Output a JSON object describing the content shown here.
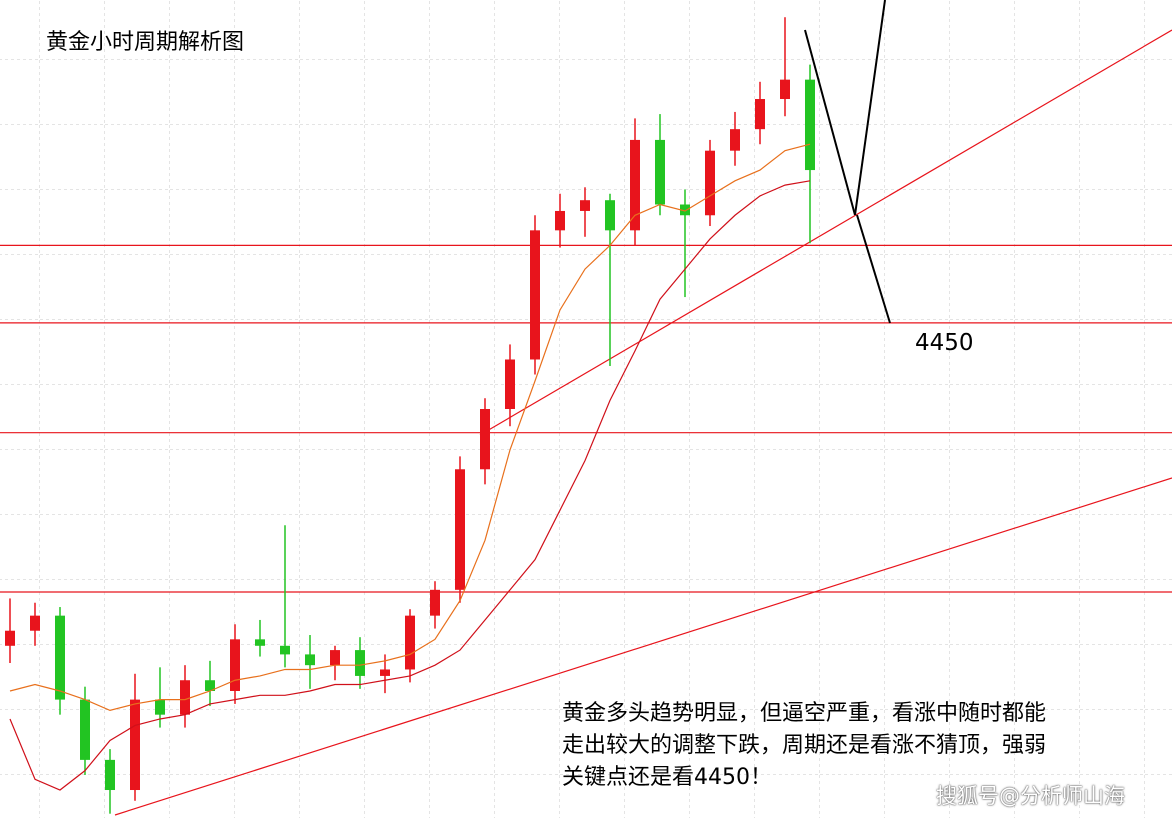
{
  "chart_data": {
    "type": "candlestick",
    "title": "黄金小时周期解析图",
    "ylim": [
      4220,
      4600
    ],
    "up_color": "#e8141c",
    "down_color": "#22c422",
    "open": [
      4300,
      4307,
      4314,
      4275,
      4247,
      4233,
      4275,
      4268,
      4284,
      4279,
      4303,
      4300,
      4296,
      4291,
      4298,
      4286,
      4289,
      4314,
      4326,
      4382,
      4410,
      4433,
      4493,
      4502,
      4507,
      4493,
      4535,
      4505,
      4500,
      4530,
      4540,
      4554,
      4563
    ],
    "high": [
      4322,
      4320,
      4318,
      4281,
      4252,
      4287,
      4290,
      4291,
      4293,
      4310,
      4312,
      4356,
      4305,
      4300,
      4304,
      4296,
      4317,
      4330,
      4388,
      4415,
      4440,
      4500,
      4510,
      4513,
      4510,
      4545,
      4547,
      4512,
      4535,
      4548,
      4562,
      4592,
      4570
    ],
    "low": [
      4292,
      4300,
      4268,
      4240,
      4222,
      4228,
      4262,
      4262,
      4272,
      4273,
      4295,
      4290,
      4280,
      4284,
      4280,
      4278,
      4283,
      4308,
      4320,
      4375,
      4402,
      4426,
      4485,
      4490,
      4430,
      4486,
      4500,
      4462,
      4495,
      4523,
      4533,
      4546,
      4487
    ],
    "close": [
      4307,
      4314,
      4275,
      4247,
      4233,
      4275,
      4268,
      4284,
      4279,
      4303,
      4300,
      4296,
      4291,
      4298,
      4286,
      4289,
      4314,
      4326,
      4382,
      4410,
      4433,
      4493,
      4502,
      4507,
      4493,
      4535,
      4505,
      4500,
      4530,
      4540,
      4554,
      4563,
      4521
    ],
    "series": [
      {
        "color": "#e8701c",
        "values": [
          4279,
          4282,
          4279,
          4275,
          4270,
          4273,
          4275,
          4275,
          4279,
          4284,
          4286,
          4289,
          4289,
          4291,
          4291,
          4293,
          4296,
          4303,
          4321,
          4349,
          4391,
          4423,
          4456,
          4475,
          4486,
          4500,
          4505,
          4502,
          4509,
          4516,
          4521,
          4530,
          4533
        ]
      },
      {
        "color": "#d0101a",
        "values": [
          4266,
          4238,
          4233,
          4242,
          4256,
          4263,
          4266,
          4268,
          4273,
          4275,
          4277,
          4277,
          4279,
          4282,
          4282,
          4284,
          4286,
          4291,
          4298,
          4312,
          4326,
          4340,
          4363,
          4386,
          4414,
          4437,
          4461,
          4475,
          4489,
          4500,
          4509,
          4514,
          4516
        ]
      }
    ],
    "levels": [
      4486,
      4450,
      4399,
      4325
    ],
    "level_color": "#e8141c",
    "labeled_level": 1,
    "note": [
      "黄金多头趋势明显，但逼空严重，看涨中随时都能",
      "走出较大的调整下跌，周期还是看涨不猜顶，强弱",
      "关键点还是看4450！"
    ],
    "watermark": "搜狐号@分析师山海"
  }
}
